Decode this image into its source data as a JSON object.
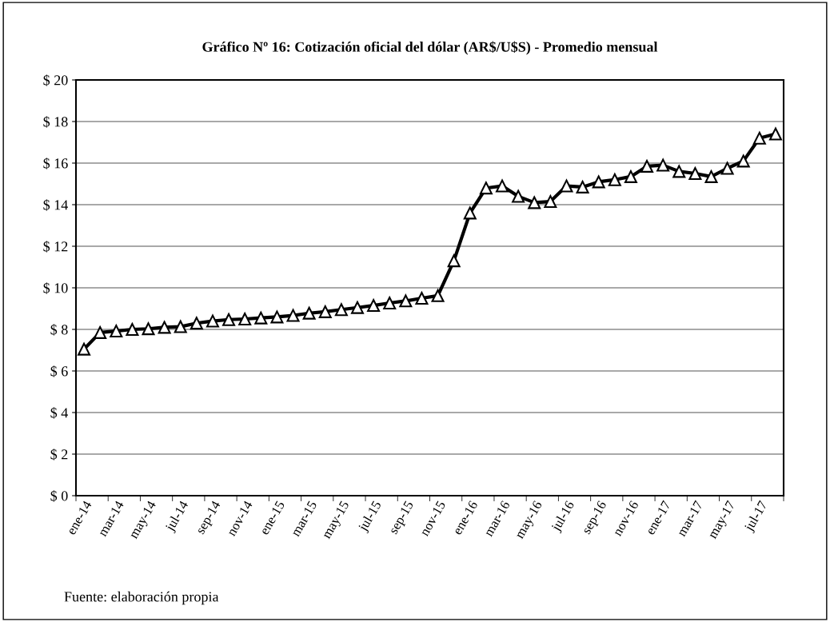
{
  "chart_data": {
    "type": "line",
    "title": "Gráfico Nº 16: Cotización oficial del dólar (AR$/U$S) - Promedio mensual",
    "categories": [
      "ene-14",
      null,
      "mar-14",
      null,
      "may-14",
      null,
      "jul-14",
      null,
      "sep-14",
      null,
      "nov-14",
      null,
      "ene-15",
      null,
      "mar-15",
      null,
      "may-15",
      null,
      "jul-15",
      null,
      "sep-15",
      null,
      "nov-15",
      null,
      "ene-16",
      null,
      "mar-16",
      null,
      "may-16",
      null,
      "jul-16",
      null,
      "sep-16",
      null,
      "nov-16",
      null,
      "ene-17",
      null,
      "mar-17",
      null,
      "may-17",
      null,
      "jul-17",
      null
    ],
    "series": [
      {
        "color": "#000000",
        "values": [
          7.05,
          7.85,
          7.92,
          8.0,
          8.03,
          8.1,
          8.13,
          8.3,
          8.4,
          8.47,
          8.5,
          8.55,
          8.6,
          8.67,
          8.78,
          8.85,
          8.95,
          9.05,
          9.15,
          9.27,
          9.37,
          9.5,
          9.62,
          11.3,
          13.6,
          14.8,
          14.9,
          14.4,
          14.1,
          14.15,
          14.9,
          14.85,
          15.1,
          15.2,
          15.35,
          15.85,
          15.9,
          15.6,
          15.5,
          15.35,
          15.75,
          16.1,
          17.2,
          17.4
        ]
      }
    ],
    "ylim": [
      0,
      20
    ],
    "yticks": [
      {
        "value": 0,
        "label": "$ 0"
      },
      {
        "value": 2,
        "label": "$ 2"
      },
      {
        "value": 4,
        "label": "$ 4"
      },
      {
        "value": 6,
        "label": "$ 6"
      },
      {
        "value": 8,
        "label": "$ 8"
      },
      {
        "value": 10,
        "label": "$ 10"
      },
      {
        "value": 12,
        "label": "$ 12"
      },
      {
        "value": 14,
        "label": "$ 14"
      },
      {
        "value": 16,
        "label": "$ 16"
      },
      {
        "value": 18,
        "label": "$ 18"
      },
      {
        "value": 20,
        "label": "$ 20"
      }
    ],
    "grid": "y",
    "marker": "triangle",
    "line_style": "solid",
    "annotations": [
      "Fuente: elaboración propia"
    ]
  }
}
